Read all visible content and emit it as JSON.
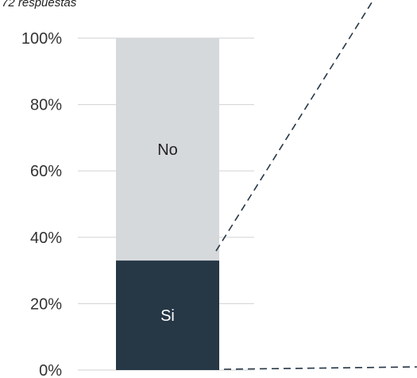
{
  "subtitle": "72 respuestas",
  "chart_data": {
    "type": "bar",
    "stacked": true,
    "normalized_percent": true,
    "subtitle": "72 respuestas",
    "categories": [
      ""
    ],
    "series": [
      {
        "name": "Si",
        "values": [
          33
        ],
        "color": "#263746",
        "label_color": "#ffffff"
      },
      {
        "name": "No",
        "values": [
          67
        ],
        "color": "#d6d9dc",
        "label_color": "#222222"
      }
    ],
    "ylim": [
      0,
      100
    ],
    "yticks": [
      0,
      20,
      40,
      60,
      80,
      100
    ],
    "ytick_labels": [
      "0%",
      "20%",
      "40%",
      "60%",
      "80%",
      "100%"
    ],
    "grid": true,
    "legend": "none",
    "connector_lines": "dashed"
  }
}
